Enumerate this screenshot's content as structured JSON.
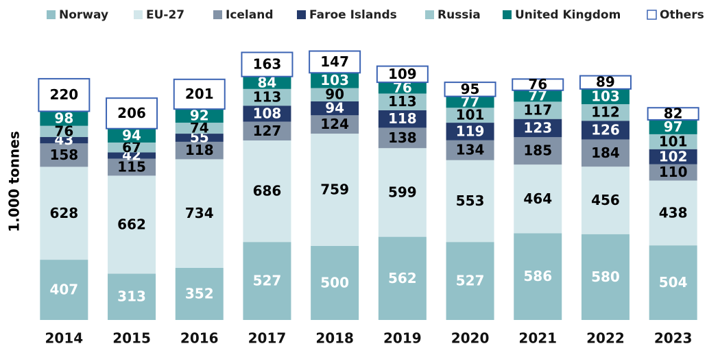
{
  "chart_data": {
    "type": "stacked_bar",
    "y_label": "1.000 tonnes",
    "categories": [
      "2014",
      "2015",
      "2016",
      "2017",
      "2018",
      "2019",
      "2020",
      "2021",
      "2022",
      "2023"
    ],
    "ylim": [
      0,
      2000
    ],
    "series": [
      {
        "name": "Norway",
        "color": "#93c1c8",
        "label_color": "#ffffff",
        "values": [
          407,
          313,
          352,
          527,
          500,
          562,
          527,
          586,
          580,
          504
        ]
      },
      {
        "name": "EU-27",
        "color": "#d3e7eb",
        "label_color": "#000000",
        "values": [
          628,
          662,
          734,
          686,
          759,
          599,
          553,
          464,
          456,
          438
        ]
      },
      {
        "name": "Iceland",
        "color": "#8393a7",
        "label_color": "#000000",
        "values": [
          158,
          115,
          118,
          127,
          124,
          138,
          134,
          185,
          184,
          110
        ]
      },
      {
        "name": "Faroe Islands",
        "color": "#243a6a",
        "label_color": "#ffffff",
        "values": [
          43,
          42,
          55,
          108,
          94,
          118,
          119,
          123,
          126,
          102
        ]
      },
      {
        "name": "Russia",
        "color": "#9dc8cd",
        "label_color": "#000000",
        "values": [
          76,
          67,
          74,
          113,
          90,
          113,
          101,
          117,
          112,
          101
        ]
      },
      {
        "name": "United Kingdom",
        "color": "#007a78",
        "label_color": "#ffffff",
        "values": [
          98,
          94,
          92,
          84,
          103,
          76,
          77,
          77,
          103,
          97
        ]
      },
      {
        "name": "Others",
        "color": "#ffffff",
        "border": "#3b63b3",
        "label_color": "#000000",
        "values": [
          220,
          206,
          201,
          163,
          147,
          109,
          95,
          76,
          89,
          82
        ]
      }
    ]
  }
}
